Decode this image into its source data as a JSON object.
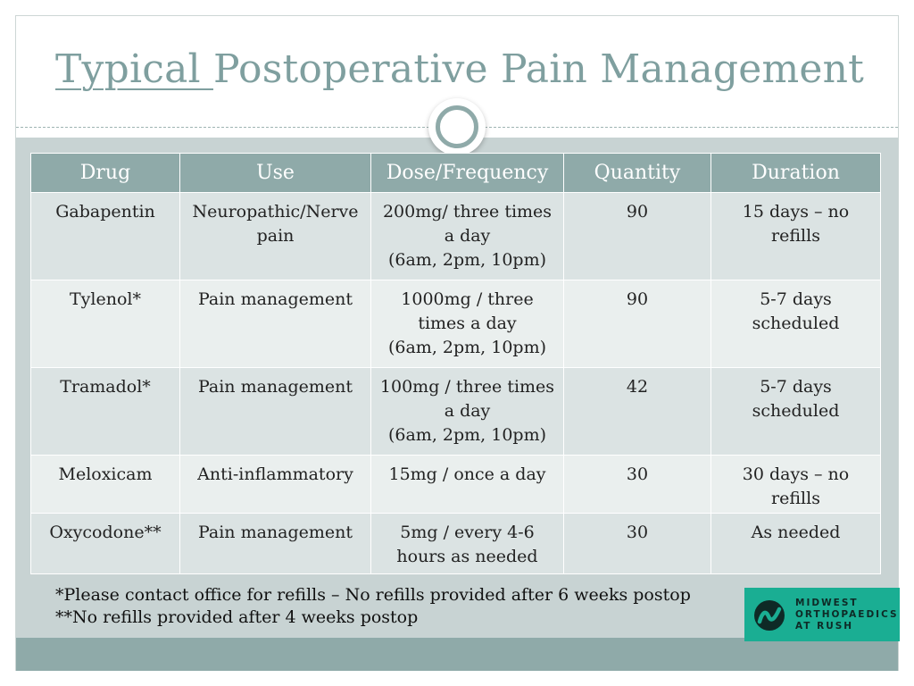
{
  "slide": {
    "title_underlined": "Typical ",
    "title_rest": "Postoperative Pain Management"
  },
  "table": {
    "headers": [
      "Drug",
      "Use",
      "Dose/Frequency",
      "Quantity",
      "Duration"
    ],
    "rows": [
      {
        "drug": "Gabapentin",
        "use": [
          "Neuropathic/Nerve",
          "pain"
        ],
        "dose": [
          "200mg/ three times",
          "a day",
          "(6am, 2pm, 10pm)"
        ],
        "quantity": "90",
        "duration": [
          "15 days – no",
          "refills"
        ]
      },
      {
        "drug": "Tylenol*",
        "use": [
          "Pain management"
        ],
        "dose": [
          "1000mg / three",
          "times a day",
          "(6am, 2pm, 10pm)"
        ],
        "quantity": "90",
        "duration": [
          "5-7 days",
          "scheduled"
        ]
      },
      {
        "drug": "Tramadol*",
        "use": [
          "Pain management"
        ],
        "dose": [
          "100mg / three times",
          "a day",
          "(6am, 2pm, 10pm)"
        ],
        "quantity": "42",
        "duration": [
          "5-7 days",
          "scheduled"
        ]
      },
      {
        "drug": "Meloxicam",
        "use": [
          "Anti-inflammatory"
        ],
        "dose": [
          "15mg / once a day"
        ],
        "quantity": "30",
        "duration": [
          "30 days – no",
          "refills"
        ]
      },
      {
        "drug": "Oxycodone**",
        "use": [
          "Pain management"
        ],
        "dose": [
          "5mg / every 4-6",
          "hours as needed"
        ],
        "quantity": "30",
        "duration": [
          "As needed"
        ]
      }
    ]
  },
  "footnotes": [
    "*Please contact office for refills – No refills provided after 6 weeks postop",
    "**No refills provided after 4 weeks postop"
  ],
  "logo": {
    "lines": [
      "MIDWEST",
      "ORTHOPAEDICS",
      "AT RUSH"
    ],
    "background_color": "#1aae93"
  },
  "colors": {
    "accent": "#8faaa9",
    "title": "#7f9f9f",
    "content_background": "#c8d3d3"
  }
}
